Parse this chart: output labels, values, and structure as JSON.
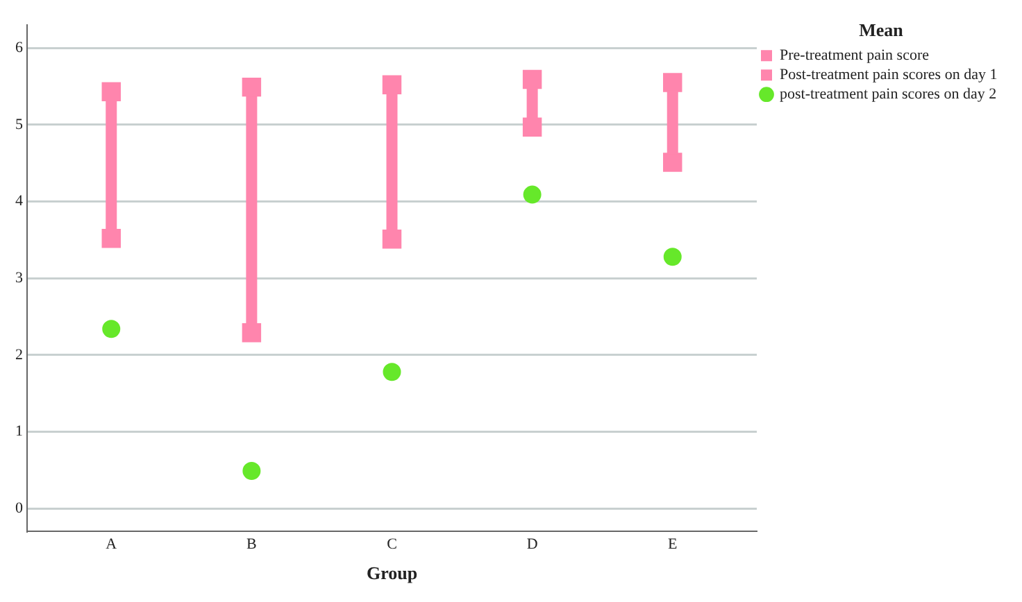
{
  "chart_data": {
    "type": "scatter",
    "xlabel": "Group",
    "legend_title": "Mean",
    "categories": [
      "A",
      "B",
      "C",
      "D",
      "E"
    ],
    "series": [
      {
        "name": "Pre-treatment pain score",
        "color": "#ff85ad",
        "marker": "square",
        "values": [
          5.43,
          5.49,
          5.52,
          5.59,
          5.55
        ]
      },
      {
        "name": "Post-treatment pain scores on day 1",
        "color": "#ff85ad",
        "marker": "square",
        "values": [
          3.52,
          2.29,
          3.51,
          4.97,
          4.51
        ]
      },
      {
        "name": "post-treatment pain scores on day 2",
        "color": "#66e82a",
        "marker": "circle",
        "values": [
          2.34,
          0.49,
          1.78,
          4.09,
          3.28
        ]
      }
    ],
    "ylim": [
      -0.3,
      6.3
    ],
    "yticks": [
      0,
      1,
      2,
      3,
      4,
      5,
      6
    ],
    "grid": "y",
    "legend": "top right"
  }
}
